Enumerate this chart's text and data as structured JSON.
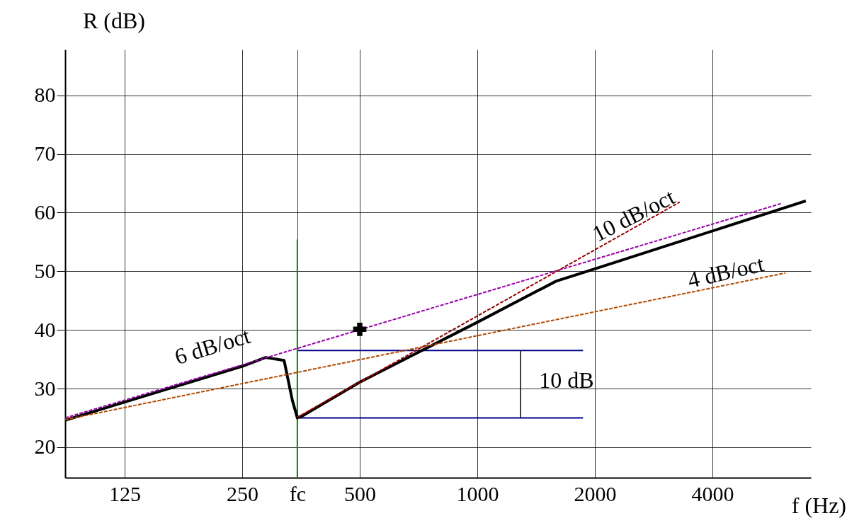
{
  "chart_data": {
    "type": "line",
    "xlabel": "f (Hz)",
    "ylabel": "R (dB)",
    "log": "x",
    "xlim": [
      88,
      7150
    ],
    "xticks": [
      125,
      250,
      {
        "value": 346,
        "label": "fc"
      },
      500,
      1000,
      2000,
      4000
    ],
    "ylim": [
      14.8,
      87.8
    ],
    "yticks": [
      20,
      30,
      40,
      50,
      60,
      70,
      80
    ],
    "grid": true,
    "series": [
      {
        "color": "#9900aa",
        "line_style": "dashed",
        "x": [
          88,
          6040
        ],
        "values": [
          25,
          61.6
        ]
      },
      {
        "color": "#b04a00",
        "line_style": "dashed",
        "x": [
          88,
          6150
        ],
        "values": [
          24.7,
          49.7
        ]
      },
      {
        "color": "#990000",
        "line_style": "dashed",
        "x": [
          346,
          3300
        ],
        "values": [
          25.1,
          61.8
        ]
      },
      {
        "color": "#00008b",
        "line_style": "solid",
        "x": [
          346,
          1866
        ],
        "values": [
          36.5,
          36.5
        ]
      },
      {
        "color": "#00008b",
        "line_style": "solid",
        "x": [
          346,
          1866
        ],
        "values": [
          25,
          25
        ]
      },
      {
        "color": "#00a000",
        "line_style": "solid",
        "x": [
          346,
          346
        ],
        "values": [
          14.8,
          55.4
        ]
      },
      {
        "color": "#000000",
        "line_style": "solid",
        "x": [
          1290,
          1290
        ],
        "values": [
          25,
          36.5
        ]
      },
      {
        "color": "#000000",
        "line_style": "solid",
        "x": [
          88,
          125,
          250,
          287,
          320,
          336,
          346,
          360,
          500,
          1000,
          1590,
          2000,
          6940
        ],
        "values": [
          24.6,
          27.7,
          33.8,
          35.3,
          34.8,
          28,
          25,
          25.5,
          31.1,
          41.3,
          48.3,
          50.4,
          62
        ]
      },
      {
        "type": "scatter",
        "marker": "cross",
        "color": "#000000",
        "x": [
          500
        ],
        "values": [
          40.1
        ]
      }
    ],
    "annotations": [
      "6 dB/oct",
      "10 dB/oct",
      "4 dB/oct",
      "10 dB"
    ]
  }
}
